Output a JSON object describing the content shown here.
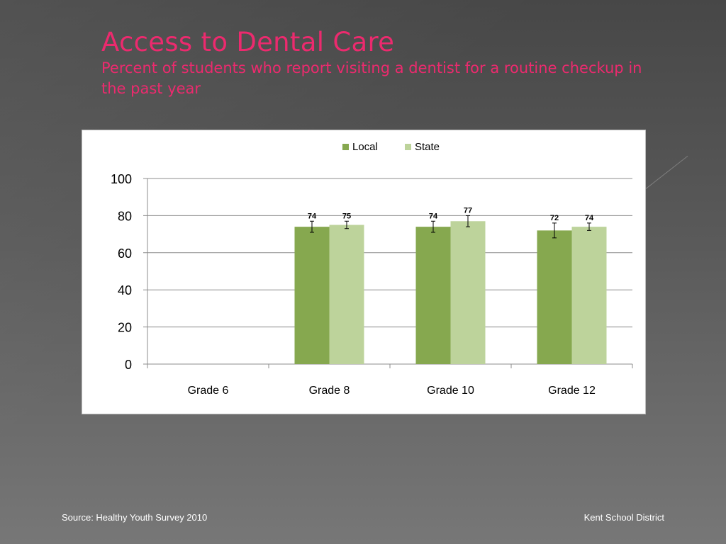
{
  "title": "Access to Dental Care",
  "subtitle": "Percent of students who report visiting a dentist for a routine checkup in the past year",
  "footer": {
    "source": "Source: Healthy Youth Survey 2010",
    "org": "Kent School District"
  },
  "chart_data": {
    "type": "bar",
    "categories": [
      "Grade 6",
      "Grade 8",
      "Grade 10",
      "Grade 12"
    ],
    "series": [
      {
        "name": "Local",
        "values": [
          null,
          74,
          74,
          72
        ],
        "error": [
          null,
          3,
          3,
          4
        ],
        "color": "#86a84f"
      },
      {
        "name": "State",
        "values": [
          null,
          75,
          77,
          74
        ],
        "error": [
          null,
          2,
          3,
          2
        ],
        "color": "#bdd39b"
      }
    ],
    "ylim": [
      0,
      100
    ],
    "yticks": [
      0,
      20,
      40,
      60,
      80,
      100
    ],
    "grid": true,
    "legend": "top-center"
  }
}
